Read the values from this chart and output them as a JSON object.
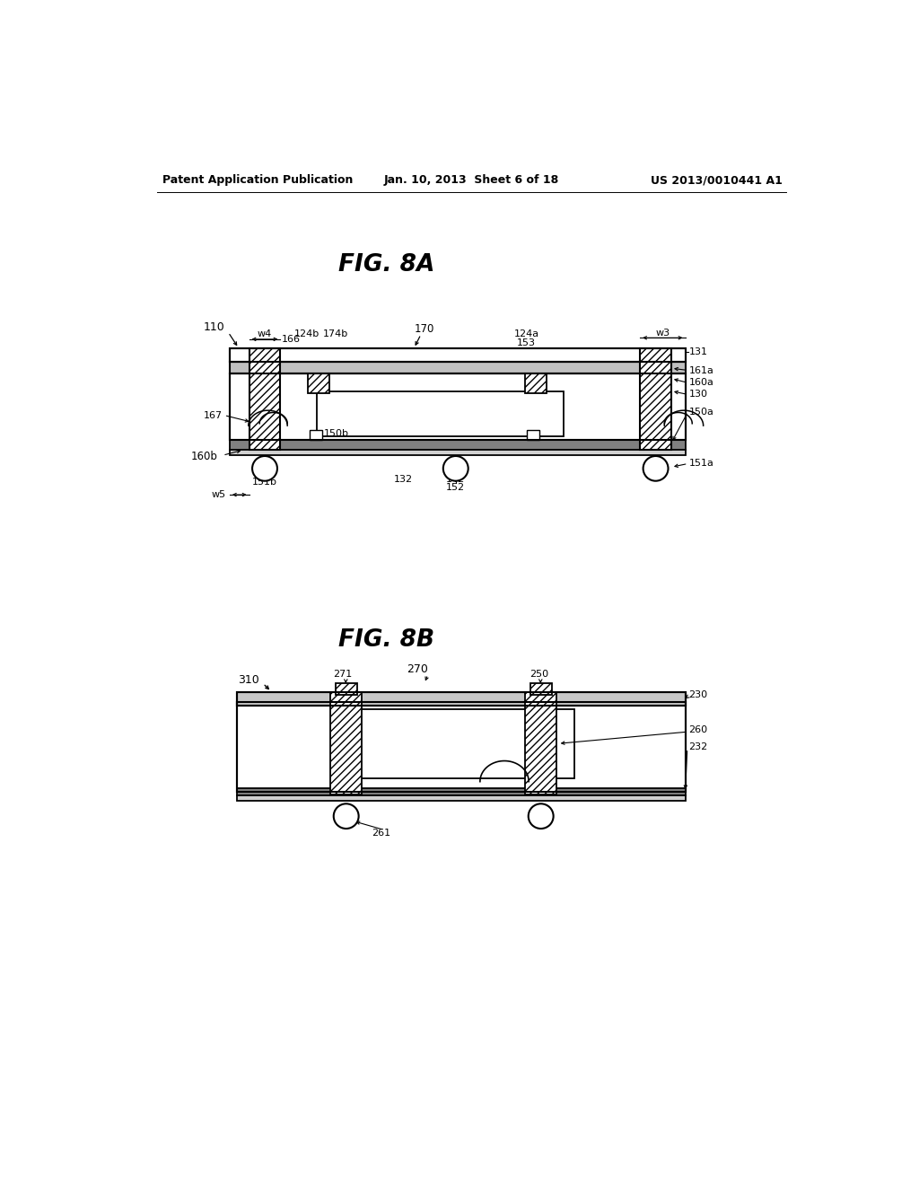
{
  "header_left": "Patent Application Publication",
  "header_center": "Jan. 10, 2013  Sheet 6 of 18",
  "header_right": "US 2013/0010441 A1",
  "fig8a_title": "FIG. 8A",
  "fig8b_title": "FIG. 8B",
  "bg_color": "#ffffff"
}
